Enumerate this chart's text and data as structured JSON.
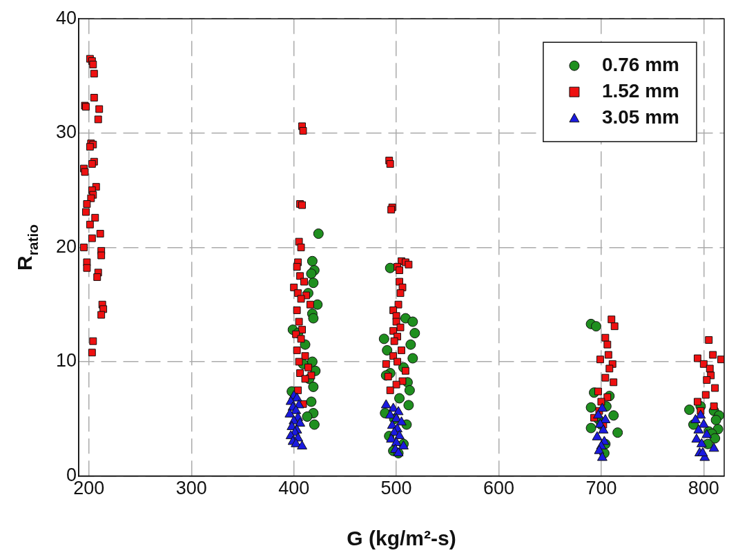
{
  "chart_data": {
    "type": "scatter",
    "xlabel": "G (kg/m²-s)",
    "ylabel": "R$_{ratio}$",
    "xlim": [
      190,
      820
    ],
    "ylim": [
      0,
      40
    ],
    "xticks": [
      200,
      300,
      400,
      500,
      600,
      700,
      800
    ],
    "yticks": [
      0,
      10,
      20,
      30,
      40
    ],
    "grid": true,
    "legend": "top right",
    "series": [
      {
        "name": "0.76 mm",
        "color": "#1f8f1f",
        "marker": "circle",
        "x": [
          424,
          418,
          420,
          417,
          419,
          414,
          423,
          418,
          419,
          399,
          404,
          411,
          418,
          409,
          421,
          415,
          419,
          398,
          417,
          419,
          413,
          420,
          494,
          509,
          516,
          518,
          488,
          514,
          491,
          516,
          507,
          494,
          490,
          511,
          513,
          503,
          512,
          489,
          498,
          510,
          493,
          507,
          497,
          502,
          690,
          695,
          693,
          708,
          705,
          690,
          712,
          697,
          700,
          690,
          716,
          704,
          703,
          797,
          786,
          810,
          815,
          812,
          790,
          814,
          805,
          808,
          811,
          804
        ],
        "values": [
          21.2,
          18.8,
          18.0,
          17.7,
          16.9,
          16.0,
          15.0,
          14.2,
          13.8,
          12.8,
          12.5,
          11.5,
          10.0,
          9.8,
          9.2,
          8.5,
          7.8,
          7.4,
          6.5,
          5.5,
          5.2,
          4.5,
          18.2,
          13.8,
          13.5,
          12.5,
          12.0,
          11.5,
          11.0,
          10.3,
          9.5,
          9.0,
          8.8,
          8.2,
          7.5,
          6.8,
          6.2,
          5.5,
          5.0,
          4.5,
          3.5,
          2.8,
          2.2,
          2.0,
          13.3,
          13.1,
          7.3,
          7.0,
          6.1,
          6.0,
          5.3,
          5.0,
          4.5,
          4.2,
          3.8,
          2.8,
          2.0,
          6.1,
          5.8,
          5.7,
          5.3,
          4.9,
          4.5,
          4.1,
          3.9,
          3.7,
          3.3,
          2.8
        ]
      },
      {
        "name": "1.52 mm",
        "color": "#ee1111",
        "marker": "square",
        "x": [
          201,
          203,
          204,
          205,
          205,
          196,
          197,
          210,
          209,
          202,
          204,
          201,
          205,
          203,
          195,
          196,
          207,
          203,
          204,
          202,
          198,
          197,
          206,
          201,
          211,
          203,
          195,
          212,
          212,
          198,
          198,
          209,
          208,
          213,
          214,
          212,
          204,
          203,
          408,
          409,
          406,
          408,
          405,
          407,
          404,
          403,
          406,
          410,
          400,
          404,
          412,
          407,
          416,
          403,
          405,
          408,
          402,
          407,
          403,
          411,
          405,
          414,
          406,
          417,
          411,
          404,
          409,
          493,
          494,
          496,
          495,
          505,
          509,
          512,
          501,
          503,
          503,
          506,
          504,
          502,
          497,
          500,
          500,
          504,
          497,
          501,
          498,
          505,
          497,
          501,
          490,
          509,
          492,
          506,
          500,
          494,
          710,
          713,
          704,
          706,
          707,
          699,
          711,
          708,
          704,
          712,
          697,
          706,
          700,
          698,
          693,
          702,
          805,
          809,
          794,
          817,
          800,
          806,
          807,
          803,
          811,
          802,
          794,
          810,
          797
        ],
        "values": [
          36.5,
          36.3,
          36.0,
          35.2,
          33.1,
          32.4,
          32.3,
          32.1,
          31.2,
          29.1,
          29.0,
          28.8,
          27.5,
          27.3,
          26.9,
          26.6,
          25.3,
          25.0,
          24.6,
          24.3,
          23.8,
          23.1,
          22.6,
          22.0,
          21.2,
          20.8,
          20.0,
          19.7,
          19.3,
          18.7,
          18.2,
          17.8,
          17.4,
          15.0,
          14.6,
          14.1,
          11.8,
          10.8,
          30.6,
          30.2,
          23.8,
          23.7,
          20.5,
          20.0,
          18.7,
          18.3,
          17.5,
          17.0,
          16.5,
          16.0,
          15.8,
          15.5,
          15.0,
          14.5,
          13.5,
          12.8,
          12.4,
          12.0,
          11.0,
          10.5,
          10.0,
          9.5,
          9.0,
          8.8,
          8.5,
          7.5,
          6.3,
          27.6,
          27.3,
          23.5,
          23.3,
          18.8,
          18.7,
          18.5,
          18.3,
          18.0,
          17.0,
          16.5,
          16.0,
          15.0,
          14.5,
          14.0,
          13.5,
          13.0,
          12.7,
          12.2,
          11.8,
          11.0,
          10.5,
          10.0,
          9.8,
          9.2,
          8.7,
          8.3,
          8.0,
          7.5,
          13.7,
          13.1,
          12.1,
          11.5,
          10.6,
          10.2,
          9.8,
          9.4,
          8.6,
          8.2,
          7.4,
          6.9,
          6.5,
          5.7,
          5.1,
          4.5,
          11.9,
          10.6,
          10.3,
          10.2,
          9.8,
          9.4,
          8.8,
          8.4,
          7.7,
          7.1,
          6.5,
          6.1,
          5.7
        ]
      },
      {
        "name": "3.05 mm",
        "color": "#1a1adf",
        "marker": "triangle",
        "x": [
          400,
          403,
          397,
          405,
          399,
          402,
          396,
          404,
          400,
          406,
          398,
          403,
          401,
          397,
          404,
          399,
          402,
          408,
          490,
          497,
          502,
          494,
          500,
          505,
          496,
          501,
          498,
          503,
          495,
          500,
          507,
          499,
          502,
          701,
          697,
          704,
          699,
          702,
          696,
          703,
          700,
          698,
          701,
          797,
          792,
          800,
          795,
          803,
          793,
          798,
          810,
          796,
          801,
          799
        ],
        "values": [
          7.0,
          6.8,
          6.5,
          6.2,
          6.0,
          5.7,
          5.4,
          5.1,
          4.8,
          4.6,
          4.3,
          4.0,
          3.8,
          3.5,
          3.3,
          3.0,
          2.8,
          2.6,
          6.2,
          5.9,
          5.6,
          5.3,
          5.0,
          4.7,
          4.4,
          4.1,
          3.8,
          3.5,
          3.2,
          2.9,
          2.6,
          2.3,
          2.0,
          5.9,
          5.3,
          4.9,
          4.5,
          4.0,
          3.4,
          3.0,
          2.6,
          2.2,
          1.6,
          5.3,
          4.9,
          4.5,
          4.0,
          3.6,
          3.2,
          2.8,
          2.4,
          2.0,
          1.6,
          2.0
        ]
      }
    ]
  }
}
